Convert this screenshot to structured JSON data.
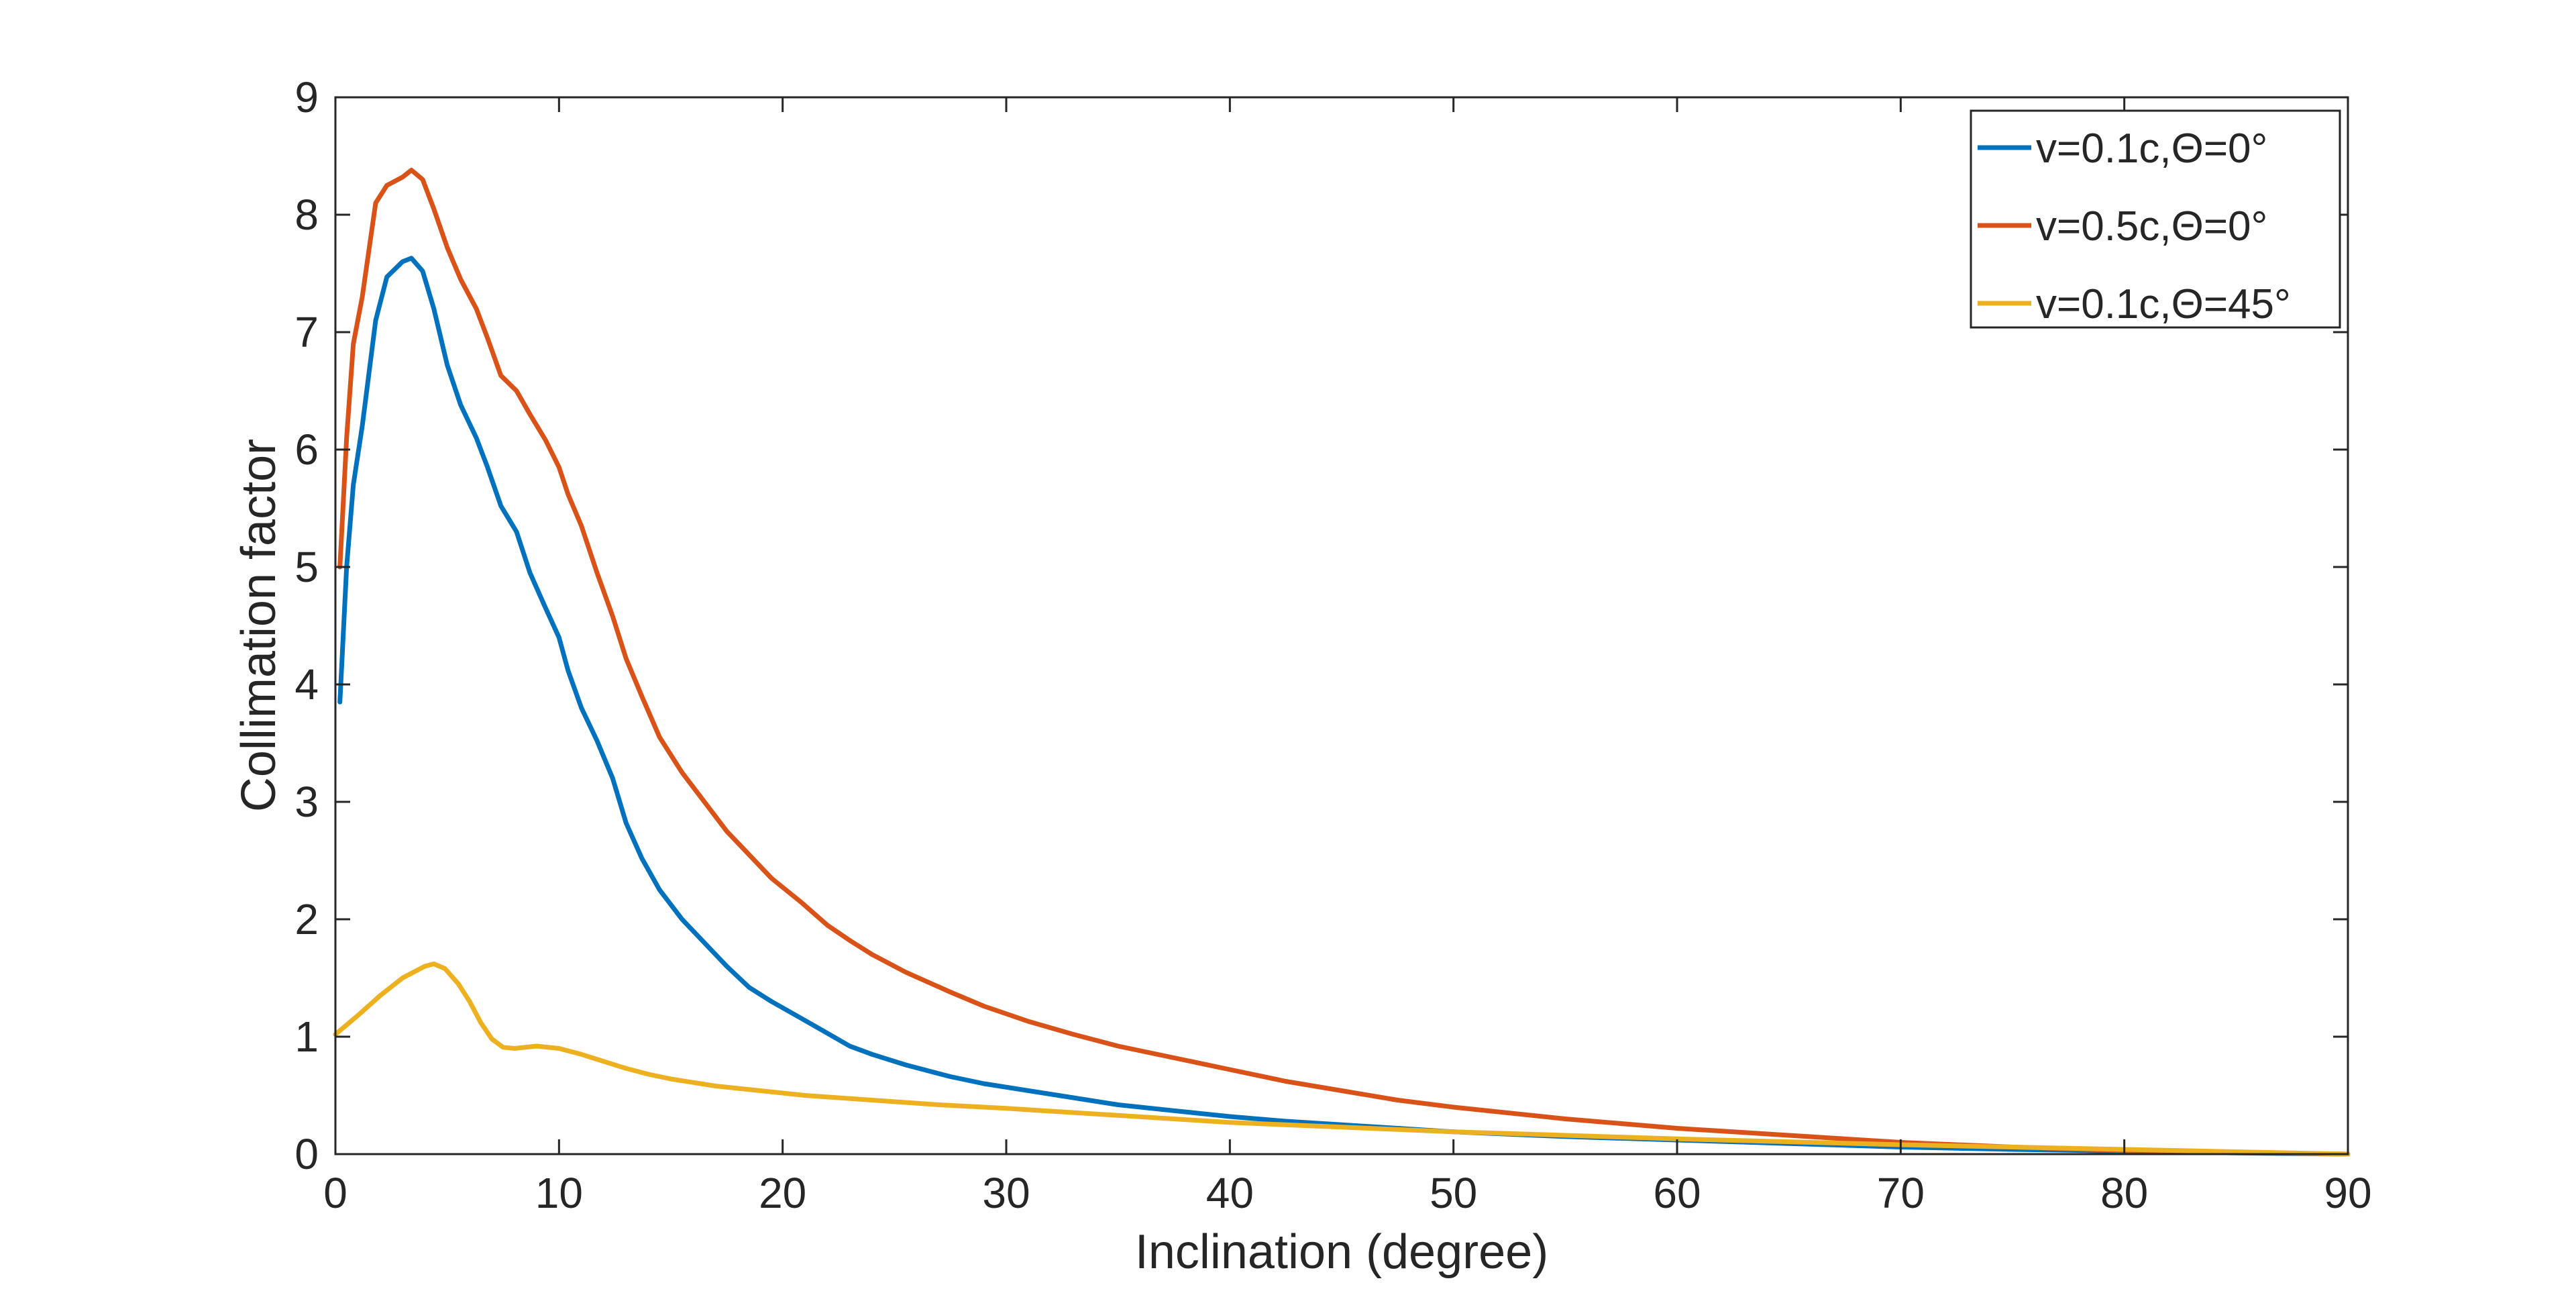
{
  "chart_data": {
    "type": "line",
    "title": "",
    "xlabel": "Inclination (degree)",
    "ylabel": "Collimation factor",
    "xlim": [
      0,
      90
    ],
    "ylim": [
      0,
      9
    ],
    "xticks": [
      0,
      10,
      20,
      30,
      40,
      50,
      60,
      70,
      80,
      90
    ],
    "yticks": [
      0,
      1,
      2,
      3,
      4,
      5,
      6,
      7,
      8,
      9
    ],
    "grid": false,
    "legend_position": "top-right",
    "series": [
      {
        "name": "v=0.1c,Θ=0°",
        "color": "#0072BD",
        "x": [
          0.2,
          0.5,
          0.8,
          1.2,
          1.8,
          2.3,
          3.0,
          3.4,
          3.9,
          4.4,
          5.0,
          5.6,
          6.3,
          6.8,
          7.4,
          8.1,
          8.7,
          9.4,
          10.0,
          10.4,
          11.0,
          11.7,
          12.4,
          13.0,
          13.7,
          14.5,
          15.5,
          16.5,
          17.5,
          18.5,
          19.5,
          20.8,
          22.0,
          23.0,
          24.0,
          25.5,
          27.5,
          29.0,
          31.0,
          33.0,
          35.0,
          37.5,
          40.0,
          42.5,
          45.0,
          47.5,
          50.0,
          55.0,
          60.0,
          65.0,
          70.0,
          75.0,
          80.0,
          85.0,
          90.0
        ],
        "y": [
          3.85,
          5.0,
          5.7,
          6.2,
          7.1,
          7.47,
          7.6,
          7.63,
          7.52,
          7.2,
          6.72,
          6.38,
          6.1,
          5.85,
          5.52,
          5.3,
          4.95,
          4.65,
          4.4,
          4.12,
          3.8,
          3.52,
          3.2,
          2.82,
          2.52,
          2.25,
          2.0,
          1.8,
          1.6,
          1.42,
          1.3,
          1.16,
          1.03,
          0.92,
          0.85,
          0.76,
          0.66,
          0.6,
          0.54,
          0.48,
          0.42,
          0.37,
          0.32,
          0.28,
          0.25,
          0.22,
          0.19,
          0.15,
          0.12,
          0.09,
          0.06,
          0.04,
          0.025,
          0.01,
          0.0
        ]
      },
      {
        "name": "v=0.5c,Θ=0°",
        "color": "#D95319",
        "x": [
          0.2,
          0.5,
          0.8,
          1.2,
          1.8,
          2.3,
          3.0,
          3.4,
          3.9,
          4.4,
          5.0,
          5.6,
          6.3,
          6.8,
          7.4,
          8.1,
          8.7,
          9.4,
          10.0,
          10.4,
          11.0,
          11.7,
          12.4,
          13.0,
          13.7,
          14.5,
          15.5,
          16.5,
          17.5,
          18.5,
          19.5,
          20.8,
          22.0,
          23.0,
          24.0,
          25.5,
          27.5,
          29.0,
          31.0,
          33.0,
          35.0,
          37.5,
          40.0,
          42.5,
          45.0,
          47.5,
          50.0,
          55.0,
          60.0,
          65.0,
          70.0,
          75.0,
          80.0,
          85.0,
          90.0
        ],
        "y": [
          5.0,
          6.1,
          6.9,
          7.3,
          8.1,
          8.25,
          8.32,
          8.38,
          8.3,
          8.05,
          7.72,
          7.45,
          7.2,
          6.95,
          6.63,
          6.5,
          6.3,
          6.08,
          5.85,
          5.62,
          5.35,
          4.95,
          4.58,
          4.22,
          3.9,
          3.55,
          3.25,
          3.0,
          2.75,
          2.55,
          2.35,
          2.15,
          1.95,
          1.82,
          1.7,
          1.55,
          1.38,
          1.26,
          1.13,
          1.02,
          0.92,
          0.82,
          0.72,
          0.62,
          0.54,
          0.46,
          0.4,
          0.3,
          0.22,
          0.16,
          0.1,
          0.06,
          0.03,
          0.015,
          0.0
        ]
      },
      {
        "name": "v=0.1c,Θ=45°",
        "color": "#EDB120",
        "x": [
          0.0,
          1.0,
          2.0,
          3.0,
          4.0,
          4.4,
          4.9,
          5.5,
          6.0,
          6.5,
          7.0,
          7.5,
          8.0,
          9.0,
          10.0,
          11.0,
          12.0,
          13.0,
          14.0,
          15.0,
          17.0,
          19.0,
          21.0,
          24.0,
          27.0,
          30.0,
          35.0,
          40.0,
          45.0,
          50.0,
          55.0,
          60.0,
          70.0,
          80.0,
          90.0
        ],
        "y": [
          1.02,
          1.18,
          1.35,
          1.5,
          1.6,
          1.62,
          1.58,
          1.45,
          1.3,
          1.12,
          0.98,
          0.91,
          0.9,
          0.92,
          0.9,
          0.85,
          0.79,
          0.73,
          0.68,
          0.64,
          0.58,
          0.54,
          0.5,
          0.46,
          0.42,
          0.39,
          0.33,
          0.27,
          0.23,
          0.19,
          0.16,
          0.13,
          0.08,
          0.04,
          0.0
        ]
      }
    ]
  }
}
